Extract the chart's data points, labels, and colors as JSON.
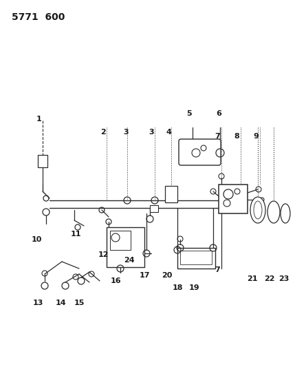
{
  "title": "5771  600",
  "bg_color": "#ffffff",
  "line_color": "#2a2a2a",
  "text_color": "#1a1a1a",
  "fig_width": 4.29,
  "fig_height": 5.33,
  "dpi": 100
}
